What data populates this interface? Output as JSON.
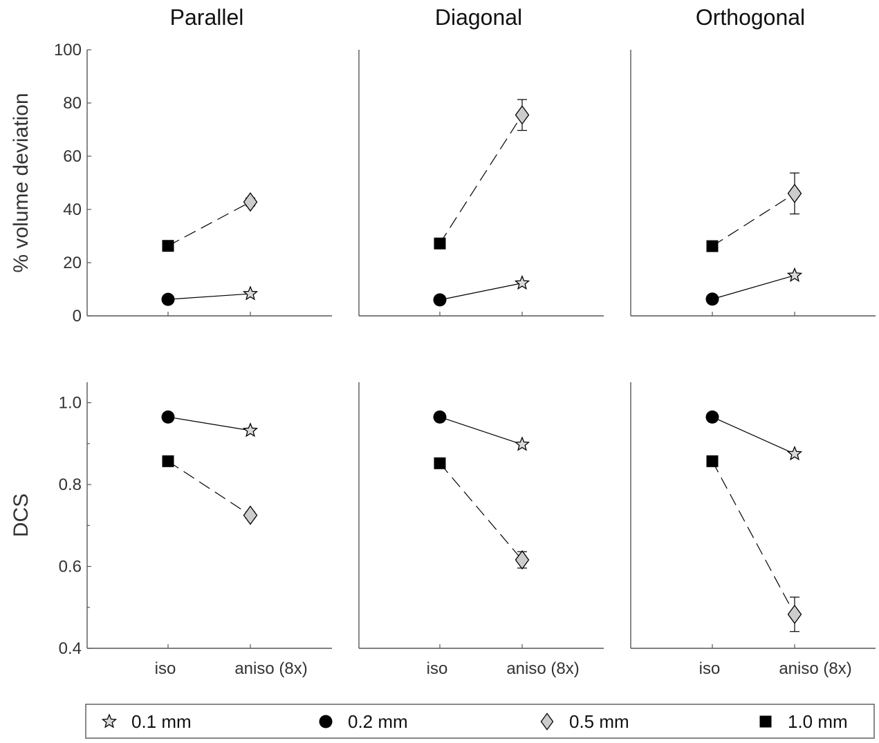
{
  "chart_data": [
    {
      "type": "scatter",
      "title": "Parallel",
      "ylabel": "% volume deviation",
      "ylim": [
        0,
        100
      ],
      "yticks": [
        "0",
        "20",
        "40",
        "60",
        "80",
        "100"
      ],
      "xticks": [
        "iso",
        "aniso (8x)"
      ],
      "series": [
        {
          "from": "0.2 mm",
          "to": "0.1 mm",
          "line": "solid",
          "values": [
            6.2,
            8.3
          ],
          "err": [
            0,
            0
          ]
        },
        {
          "from": "1.0 mm",
          "to": "0.5 mm",
          "line": "dashed",
          "values": [
            26.3,
            42.8
          ],
          "err": [
            0,
            1.5
          ]
        }
      ]
    },
    {
      "type": "scatter",
      "title": "Diagonal",
      "ylabel": "% volume deviation",
      "ylim": [
        0,
        100
      ],
      "series": [
        {
          "from": "0.2 mm",
          "to": "0.1 mm",
          "line": "solid",
          "values": [
            6.0,
            12.3
          ],
          "err": [
            0,
            0
          ]
        },
        {
          "from": "1.0 mm",
          "to": "0.5 mm",
          "line": "dashed",
          "values": [
            27.2,
            75.5
          ],
          "err": [
            0,
            5.8
          ]
        }
      ]
    },
    {
      "type": "scatter",
      "title": "Orthogonal",
      "ylabel": "% volume deviation",
      "ylim": [
        0,
        100
      ],
      "series": [
        {
          "from": "0.2 mm",
          "to": "0.1 mm",
          "line": "solid",
          "values": [
            6.3,
            15.2
          ],
          "err": [
            0,
            0
          ]
        },
        {
          "from": "1.0 mm",
          "to": "0.5 mm",
          "line": "dashed",
          "values": [
            26.2,
            46.0
          ],
          "err": [
            0,
            7.7
          ]
        }
      ]
    },
    {
      "type": "scatter",
      "title": "",
      "ylabel": "DCS",
      "ylim": [
        0.4,
        1.05
      ],
      "yticks": [
        "0.4",
        "0.6",
        "0.8",
        "1.0"
      ],
      "xticks": [
        "iso",
        "aniso (8x)"
      ],
      "series": [
        {
          "from": "0.2 mm",
          "to": "0.1 mm",
          "line": "solid",
          "values": [
            0.965,
            0.932
          ],
          "err": [
            0,
            0
          ]
        },
        {
          "from": "1.0 mm",
          "to": "0.5 mm",
          "line": "dashed",
          "values": [
            0.857,
            0.725
          ],
          "err": [
            0,
            0.008
          ]
        }
      ]
    },
    {
      "type": "scatter",
      "title": "",
      "ylabel": "DCS",
      "ylim": [
        0.4,
        1.05
      ],
      "series": [
        {
          "from": "0.2 mm",
          "to": "0.1 mm",
          "line": "solid",
          "values": [
            0.965,
            0.898
          ],
          "err": [
            0,
            0
          ]
        },
        {
          "from": "1.0 mm",
          "to": "0.5 mm",
          "line": "dashed",
          "values": [
            0.852,
            0.616
          ],
          "err": [
            0,
            0.02
          ]
        }
      ]
    },
    {
      "type": "scatter",
      "title": "",
      "ylabel": "DCS",
      "ylim": [
        0.4,
        1.05
      ],
      "series": [
        {
          "from": "0.2 mm",
          "to": "0.1 mm",
          "line": "solid",
          "values": [
            0.965,
            0.875
          ],
          "err": [
            0,
            0
          ]
        },
        {
          "from": "1.0 mm",
          "to": "0.5 mm",
          "line": "dashed",
          "values": [
            0.857,
            0.483
          ],
          "err": [
            0,
            0.042
          ]
        }
      ]
    }
  ],
  "legend": {
    "placement": "bottom",
    "items": [
      {
        "label": "0.1 mm",
        "marker": "star-icon"
      },
      {
        "label": "0.2 mm",
        "marker": "circle-icon"
      },
      {
        "label": "0.5 mm",
        "marker": "diamond-icon"
      },
      {
        "label": "1.0 mm",
        "marker": "square-icon"
      }
    ]
  },
  "colors": {
    "star_fill": "#d9d9d9",
    "diamond_fill": "#cccccc",
    "solid_marker": "#000000",
    "axis": "#555555"
  }
}
